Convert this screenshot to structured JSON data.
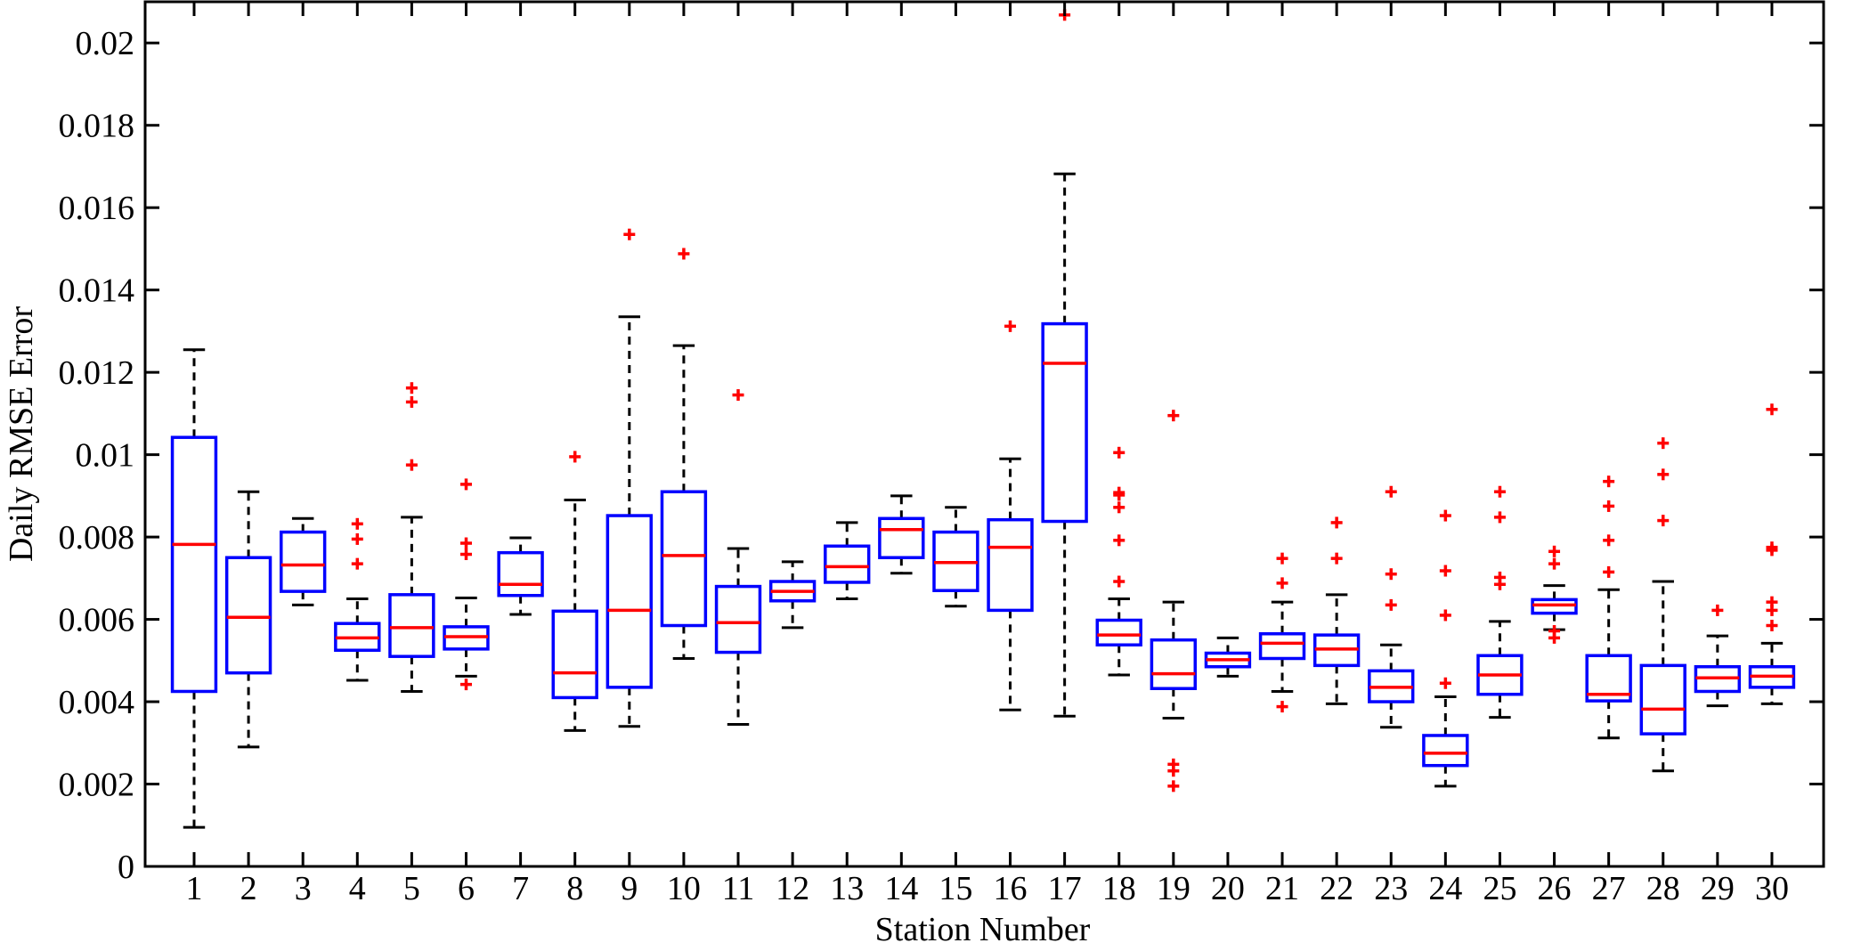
{
  "chart_data": {
    "type": "box",
    "title": "",
    "xlabel": "Station Number",
    "ylabel": "Daily RMSE Error",
    "ylim": [
      0,
      0.021
    ],
    "xlim": [
      0.1,
      30.95
    ],
    "yticks": [
      0,
      0.002,
      0.004,
      0.006,
      0.008,
      0.01,
      0.012,
      0.014,
      0.016,
      0.018,
      0.02
    ],
    "ytick_labels": [
      "0",
      "0.002",
      "0.004",
      "0.006",
      "0.008",
      "0.01",
      "0.012",
      "0.014",
      "0.016",
      "0.018",
      "0.02"
    ],
    "categories": [
      "1",
      "2",
      "3",
      "4",
      "5",
      "6",
      "7",
      "8",
      "9",
      "10",
      "11",
      "12",
      "13",
      "14",
      "15",
      "16",
      "17",
      "18",
      "19",
      "20",
      "21",
      "22",
      "23",
      "24",
      "25",
      "26",
      "27",
      "28",
      "29",
      "30"
    ],
    "grid": false,
    "colors": {
      "box": "#0000ff",
      "median": "#ff0000",
      "whisker": "#000000",
      "outlier": "#ff0000"
    },
    "boxes": [
      {
        "station": "1",
        "whisker_low": 0.00095,
        "q1": 0.00425,
        "median": 0.00782,
        "q3": 0.01042,
        "whisker_high": 0.01255,
        "outliers": []
      },
      {
        "station": "2",
        "whisker_low": 0.0029,
        "q1": 0.0047,
        "median": 0.00605,
        "q3": 0.0075,
        "whisker_high": 0.0091,
        "outliers": []
      },
      {
        "station": "3",
        "whisker_low": 0.00635,
        "q1": 0.00668,
        "median": 0.00732,
        "q3": 0.00812,
        "whisker_high": 0.00845,
        "outliers": []
      },
      {
        "station": "4",
        "whisker_low": 0.00452,
        "q1": 0.00525,
        "median": 0.00555,
        "q3": 0.0059,
        "whisker_high": 0.0065,
        "outliers": [
          0.00735,
          0.00795,
          0.00832
        ]
      },
      {
        "station": "5",
        "whisker_low": 0.00425,
        "q1": 0.0051,
        "median": 0.0058,
        "q3": 0.0066,
        "whisker_high": 0.00848,
        "outliers": [
          0.00975,
          0.01128,
          0.01162
        ]
      },
      {
        "station": "6",
        "whisker_low": 0.00462,
        "q1": 0.00528,
        "median": 0.00558,
        "q3": 0.00582,
        "whisker_high": 0.00652,
        "outliers": [
          0.00442,
          0.00758,
          0.00785,
          0.00928
        ]
      },
      {
        "station": "7",
        "whisker_low": 0.00612,
        "q1": 0.00658,
        "median": 0.00685,
        "q3": 0.00762,
        "whisker_high": 0.00798,
        "outliers": []
      },
      {
        "station": "8",
        "whisker_low": 0.0033,
        "q1": 0.0041,
        "median": 0.0047,
        "q3": 0.0062,
        "whisker_high": 0.0089,
        "outliers": [
          0.00995
        ]
      },
      {
        "station": "9",
        "whisker_low": 0.0034,
        "q1": 0.00435,
        "median": 0.00622,
        "q3": 0.00852,
        "whisker_high": 0.01335,
        "outliers": [
          0.01535
        ]
      },
      {
        "station": "10",
        "whisker_low": 0.00505,
        "q1": 0.00585,
        "median": 0.00755,
        "q3": 0.0091,
        "whisker_high": 0.01265,
        "outliers": [
          0.01488
        ]
      },
      {
        "station": "11",
        "whisker_low": 0.00345,
        "q1": 0.0052,
        "median": 0.00592,
        "q3": 0.0068,
        "whisker_high": 0.00772,
        "outliers": [
          0.01145
        ]
      },
      {
        "station": "12",
        "whisker_low": 0.0058,
        "q1": 0.00645,
        "median": 0.00668,
        "q3": 0.00692,
        "whisker_high": 0.0074,
        "outliers": []
      },
      {
        "station": "13",
        "whisker_low": 0.0065,
        "q1": 0.0069,
        "median": 0.00728,
        "q3": 0.00778,
        "whisker_high": 0.00835,
        "outliers": []
      },
      {
        "station": "14",
        "whisker_low": 0.00712,
        "q1": 0.0075,
        "median": 0.00818,
        "q3": 0.00845,
        "whisker_high": 0.009,
        "outliers": []
      },
      {
        "station": "15",
        "whisker_low": 0.00632,
        "q1": 0.0067,
        "median": 0.00738,
        "q3": 0.00812,
        "whisker_high": 0.00872,
        "outliers": []
      },
      {
        "station": "16",
        "whisker_low": 0.0038,
        "q1": 0.00622,
        "median": 0.00775,
        "q3": 0.00842,
        "whisker_high": 0.0099,
        "outliers": [
          0.01312
        ]
      },
      {
        "station": "17",
        "whisker_low": 0.00365,
        "q1": 0.00838,
        "median": 0.01222,
        "q3": 0.01318,
        "whisker_high": 0.01682,
        "outliers": [
          0.02068
        ]
      },
      {
        "station": "18",
        "whisker_low": 0.00465,
        "q1": 0.00538,
        "median": 0.00562,
        "q3": 0.00598,
        "whisker_high": 0.0065,
        "outliers": [
          0.00692,
          0.00792,
          0.00872,
          0.00902,
          0.00908,
          0.01005
        ]
      },
      {
        "station": "19",
        "whisker_low": 0.0036,
        "q1": 0.00432,
        "median": 0.00468,
        "q3": 0.0055,
        "whisker_high": 0.00642,
        "outliers": [
          0.00195,
          0.00232,
          0.00248,
          0.01095
        ]
      },
      {
        "station": "20",
        "whisker_low": 0.00462,
        "q1": 0.00485,
        "median": 0.00502,
        "q3": 0.00518,
        "whisker_high": 0.00555,
        "outliers": []
      },
      {
        "station": "21",
        "whisker_low": 0.00425,
        "q1": 0.00505,
        "median": 0.00542,
        "q3": 0.00565,
        "whisker_high": 0.00642,
        "outliers": [
          0.00388,
          0.00688,
          0.00748
        ]
      },
      {
        "station": "22",
        "whisker_low": 0.00395,
        "q1": 0.00488,
        "median": 0.00528,
        "q3": 0.00562,
        "whisker_high": 0.0066,
        "outliers": [
          0.00748,
          0.00835
        ]
      },
      {
        "station": "23",
        "whisker_low": 0.00338,
        "q1": 0.004,
        "median": 0.00435,
        "q3": 0.00475,
        "whisker_high": 0.00538,
        "outliers": [
          0.00635,
          0.0071,
          0.0091
        ]
      },
      {
        "station": "24",
        "whisker_low": 0.00195,
        "q1": 0.00245,
        "median": 0.00275,
        "q3": 0.00318,
        "whisker_high": 0.00412,
        "outliers": [
          0.00445,
          0.0061,
          0.00718,
          0.00852
        ]
      },
      {
        "station": "25",
        "whisker_low": 0.00362,
        "q1": 0.00418,
        "median": 0.00465,
        "q3": 0.00512,
        "whisker_high": 0.00595,
        "outliers": [
          0.00685,
          0.00702,
          0.00848,
          0.0091
        ]
      },
      {
        "station": "26",
        "whisker_low": 0.00575,
        "q1": 0.00615,
        "median": 0.00635,
        "q3": 0.00648,
        "whisker_high": 0.00682,
        "outliers": [
          0.00555,
          0.00572,
          0.00735,
          0.00765
        ]
      },
      {
        "station": "27",
        "whisker_low": 0.00312,
        "q1": 0.00402,
        "median": 0.00418,
        "q3": 0.00512,
        "whisker_high": 0.00672,
        "outliers": [
          0.00715,
          0.00792,
          0.00875,
          0.00935
        ]
      },
      {
        "station": "28",
        "whisker_low": 0.00232,
        "q1": 0.00322,
        "median": 0.00382,
        "q3": 0.00488,
        "whisker_high": 0.00692,
        "outliers": [
          0.0084,
          0.00952,
          0.01028
        ]
      },
      {
        "station": "29",
        "whisker_low": 0.0039,
        "q1": 0.00425,
        "median": 0.00458,
        "q3": 0.00485,
        "whisker_high": 0.0056,
        "outliers": [
          0.00622
        ]
      },
      {
        "station": "30",
        "whisker_low": 0.00395,
        "q1": 0.00435,
        "median": 0.00462,
        "q3": 0.00485,
        "whisker_high": 0.00542,
        "outliers": [
          0.00585,
          0.00622,
          0.00642,
          0.00768,
          0.00775,
          0.0111
        ]
      }
    ]
  }
}
